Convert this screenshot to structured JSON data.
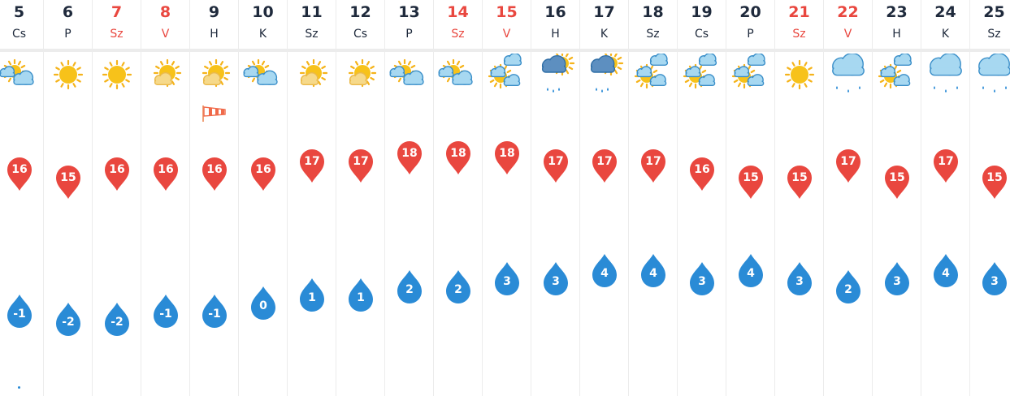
{
  "days": [
    {
      "num": "5",
      "name": "Cs",
      "weekend": false,
      "icon": "partly-cloudy-icon",
      "high": "16",
      "low": "-1"
    },
    {
      "num": "6",
      "name": "P",
      "weekend": false,
      "icon": "sun-icon",
      "high": "15",
      "low": "-2"
    },
    {
      "num": "7",
      "name": "Sz",
      "weekend": true,
      "icon": "sun-icon",
      "high": "16",
      "low": "-2"
    },
    {
      "num": "8",
      "name": "V",
      "weekend": true,
      "icon": "sun-small-cloud-icon",
      "high": "16",
      "low": "-1"
    },
    {
      "num": "9",
      "name": "H",
      "weekend": false,
      "icon": "sun-small-cloud-icon",
      "high": "16",
      "low": "-1",
      "wind": "windsock-icon"
    },
    {
      "num": "10",
      "name": "K",
      "weekend": false,
      "icon": "partly-cloudy-icon",
      "high": "16",
      "low": "0"
    },
    {
      "num": "11",
      "name": "Sz",
      "weekend": false,
      "icon": "sun-small-cloud-icon",
      "high": "17",
      "low": "1"
    },
    {
      "num": "12",
      "name": "Cs",
      "weekend": false,
      "icon": "sun-small-cloud-icon",
      "high": "17",
      "low": "1"
    },
    {
      "num": "13",
      "name": "P",
      "weekend": false,
      "icon": "partly-cloudy-icon",
      "high": "18",
      "low": "2"
    },
    {
      "num": "14",
      "name": "Sz",
      "weekend": true,
      "icon": "partly-cloudy-icon",
      "high": "18",
      "low": "2"
    },
    {
      "num": "15",
      "name": "V",
      "weekend": true,
      "icon": "cloudy-sun-icon",
      "high": "18",
      "low": "3"
    },
    {
      "num": "16",
      "name": "H",
      "weekend": false,
      "icon": "rain-sun-icon",
      "high": "17",
      "low": "3"
    },
    {
      "num": "17",
      "name": "K",
      "weekend": false,
      "icon": "rain-sun-icon",
      "high": "17",
      "low": "4"
    },
    {
      "num": "18",
      "name": "Sz",
      "weekend": false,
      "icon": "cloudy-sun-icon",
      "high": "17",
      "low": "4"
    },
    {
      "num": "19",
      "name": "Cs",
      "weekend": false,
      "icon": "cloudy-sun-icon",
      "high": "16",
      "low": "3"
    },
    {
      "num": "20",
      "name": "P",
      "weekend": false,
      "icon": "cloudy-sun-icon",
      "high": "15",
      "low": "4"
    },
    {
      "num": "21",
      "name": "Sz",
      "weekend": true,
      "icon": "sun-icon",
      "high": "15",
      "low": "3"
    },
    {
      "num": "22",
      "name": "V",
      "weekend": true,
      "icon": "rain-cloud-icon",
      "high": "17",
      "low": "2"
    },
    {
      "num": "23",
      "name": "H",
      "weekend": false,
      "icon": "cloudy-sun-icon",
      "high": "15",
      "low": "3"
    },
    {
      "num": "24",
      "name": "K",
      "weekend": false,
      "icon": "rain-cloud-icon",
      "high": "17",
      "low": "4"
    },
    {
      "num": "25",
      "name": "Sz",
      "weekend": false,
      "icon": "rain-cloud-icon",
      "high": "15",
      "low": "3"
    }
  ],
  "colors": {
    "high_pin": "#e9473f",
    "low_pin": "#2a8bd6",
    "weekday_text": "#1f2a3c",
    "weekend_text": "#e9473f",
    "grid": "#ececec"
  }
}
